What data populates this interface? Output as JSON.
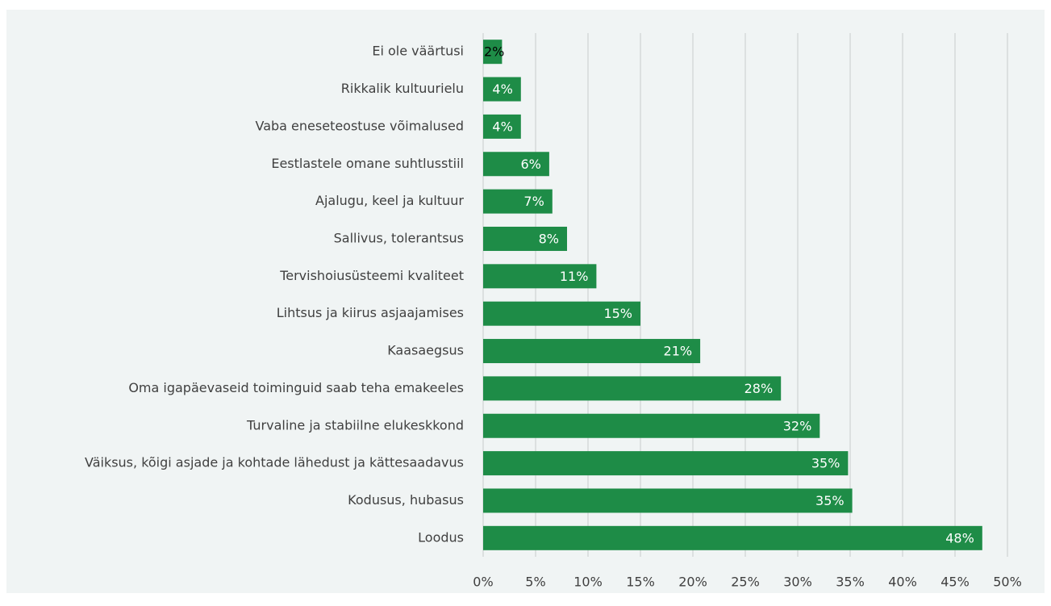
{
  "chart_data": {
    "type": "hbar",
    "categories": [
      "Ei ole väärtusi",
      "Rikkalik kultuurielu",
      "Vaba eneseteostuse võimalused",
      "Eestlastele omane suhtlusstiil",
      "Ajalugu, keel ja kultuur",
      "Sallivus, tolerantsus",
      "Tervishoiusüsteemi kvaliteet",
      "Lihtsus ja kiirus asjaajamises",
      "Kaasaegsus",
      "Oma igapäevaseid toiminguid saab teha emakeeles",
      "Turvaline ja stabiilne elukeskkond",
      "Väiksus, kõigi asjade ja kohtade lähedust ja kättesaadavus",
      "Kodusus, hubasus",
      "Loodus"
    ],
    "values": [
      1.8,
      3.6,
      3.6,
      6.3,
      6.6,
      8.0,
      10.8,
      15.0,
      20.7,
      28.4,
      32.1,
      34.8,
      35.2,
      47.6
    ],
    "value_labels": [
      "2%",
      "4%",
      "4%",
      "6%",
      "7%",
      "8%",
      "11%",
      "15%",
      "21%",
      "28%",
      "32%",
      "35%",
      "35%",
      "48%"
    ],
    "color": "#1e8c47",
    "xlim": [
      0,
      50
    ],
    "xticks": [
      {
        "value": 0,
        "label": "0%"
      },
      {
        "value": 5,
        "label": "5%"
      },
      {
        "value": 10,
        "label": "10%"
      },
      {
        "value": 15,
        "label": "15%"
      },
      {
        "value": 20,
        "label": "20%"
      },
      {
        "value": 25,
        "label": "25%"
      },
      {
        "value": 30,
        "label": "30%"
      },
      {
        "value": 35,
        "label": "35%"
      },
      {
        "value": 40,
        "label": "40%"
      },
      {
        "value": 45,
        "label": "45%"
      },
      {
        "value": 50,
        "label": "50%"
      }
    ],
    "grid": true
  }
}
